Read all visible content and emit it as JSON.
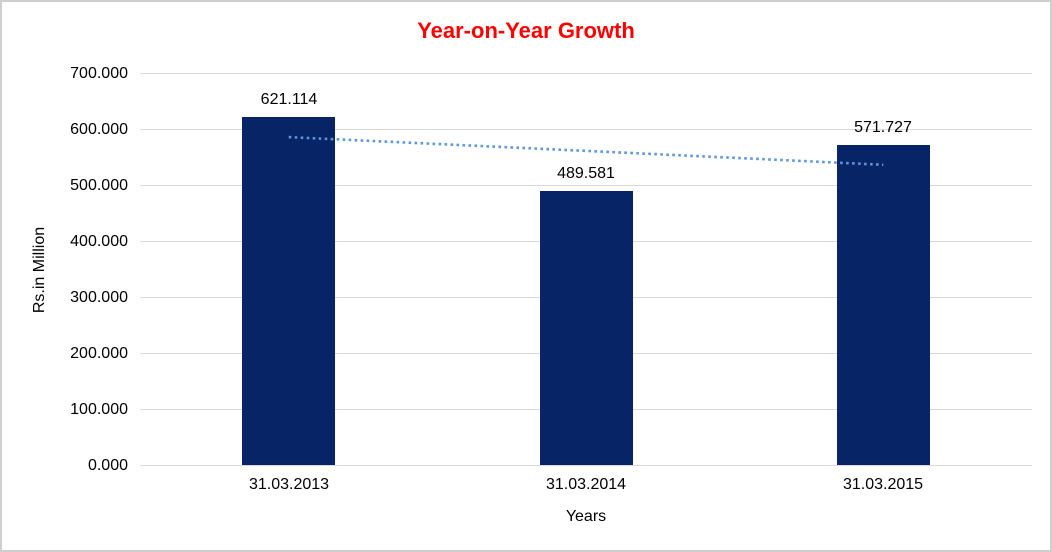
{
  "chart_data": {
    "type": "bar",
    "title": "Year-on-Year Growth",
    "title_color": "#ff0000",
    "categories": [
      "31.03.2013",
      "31.03.2014",
      "31.03.2015"
    ],
    "values": [
      621.114,
      489.581,
      571.727
    ],
    "data_labels": [
      "621.114",
      "489.581",
      "571.727"
    ],
    "xlabel": "Years",
    "ylabel": "Rs.in Million",
    "ylim": [
      0,
      700
    ],
    "ytick_step": 100,
    "ytick_labels": [
      "0.000",
      "100.000",
      "200.000",
      "300.000",
      "400.000",
      "500.000",
      "600.000",
      "700.000"
    ],
    "grid": true,
    "grid_color": "#d9d9d9",
    "bar_color": "#062466",
    "legend": "none",
    "trendline": {
      "type": "linear",
      "style": "dotted",
      "color": "#5e96d6",
      "values_at_categories": [
        585.5,
        560.81,
        536.11
      ]
    }
  }
}
